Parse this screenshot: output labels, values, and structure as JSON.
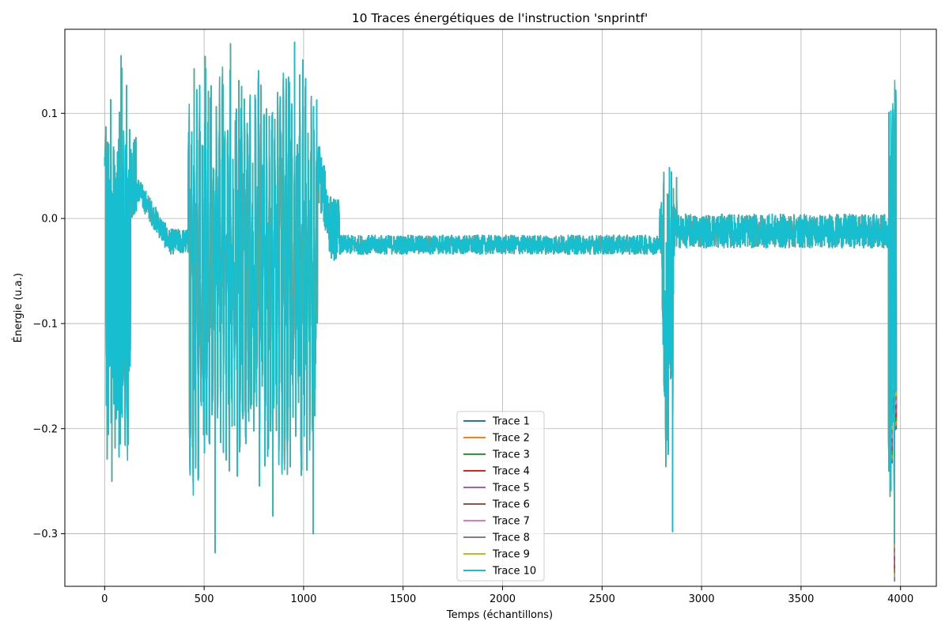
{
  "chart_data": {
    "type": "line",
    "title": "10 Traces énergétiques de l'instruction 'snprintf'",
    "xlabel": "Temps (échantillons)",
    "ylabel": "Énergie (u.a.)",
    "xlim": [
      -200,
      4180
    ],
    "ylim": [
      -0.35,
      0.18
    ],
    "xticks": [
      0,
      500,
      1000,
      1500,
      2000,
      2500,
      3000,
      3500,
      4000
    ],
    "xtick_labels": [
      "0",
      "500",
      "1000",
      "1500",
      "2000",
      "2500",
      "3000",
      "3500",
      "4000"
    ],
    "yticks": [
      -0.3,
      -0.2,
      -0.1,
      0.0,
      0.1
    ],
    "ytick_labels": [
      "−0.3",
      "−0.2",
      "−0.1",
      "0.0",
      "0.1"
    ],
    "grid": true,
    "legend_position": "lower-center",
    "sample_count": 3980,
    "note_traces_overlap": true,
    "series": [
      {
        "name": "Trace 1",
        "color": "#1f77b4"
      },
      {
        "name": "Trace 2",
        "color": "#ff7f0e"
      },
      {
        "name": "Trace 3",
        "color": "#2ca02c"
      },
      {
        "name": "Trace 4",
        "color": "#d62728"
      },
      {
        "name": "Trace 5",
        "color": "#9467bd"
      },
      {
        "name": "Trace 6",
        "color": "#8c564b"
      },
      {
        "name": "Trace 7",
        "color": "#e377c2"
      },
      {
        "name": "Trace 8",
        "color": "#7f7f7f"
      },
      {
        "name": "Trace 9",
        "color": "#bcbd22"
      },
      {
        "name": "Trace 10",
        "color": "#17becf"
      }
    ],
    "segments": [
      {
        "x": [
          0,
          5
        ],
        "mean": 0.055,
        "amp": 0.012,
        "kind": "noise"
      },
      {
        "x": [
          5,
          130
        ],
        "mean": -0.05,
        "amp": 0.16,
        "kind": "burst",
        "period": 5
      },
      {
        "x": [
          130,
          160
        ],
        "mean": 0.04,
        "amp": 0.04,
        "kind": "noise"
      },
      {
        "x": [
          160,
          420
        ],
        "mean": -0.022,
        "amp": 0.012,
        "kind": "decay",
        "from": 0.03
      },
      {
        "x": [
          420,
          1070
        ],
        "mean": -0.05,
        "amp": 0.17,
        "kind": "burst",
        "period": 14
      },
      {
        "x": [
          1070,
          1180
        ],
        "mean": -0.01,
        "amp": 0.03,
        "kind": "decay",
        "from": 0.05
      },
      {
        "x": [
          1180,
          2790
        ],
        "mean": -0.025,
        "amp": 0.009,
        "kind": "noise"
      },
      {
        "x": [
          2790,
          2870
        ],
        "mean": -0.08,
        "amp": 0.15,
        "kind": "dip"
      },
      {
        "x": [
          2870,
          3940
        ],
        "mean": -0.012,
        "amp": 0.016,
        "kind": "noise"
      },
      {
        "x": [
          3940,
          3980
        ],
        "mean": -0.08,
        "amp": 0.2,
        "kind": "tail"
      }
    ],
    "extremes": [
      {
        "x": 83,
        "y": 0.155
      },
      {
        "x": 36,
        "y": -0.25
      },
      {
        "x": 115,
        "y": -0.23
      },
      {
        "x": 555,
        "y": -0.318
      },
      {
        "x": 595,
        "y": 0.127
      },
      {
        "x": 445,
        "y": -0.263
      },
      {
        "x": 845,
        "y": -0.283
      },
      {
        "x": 870,
        "y": 0.12
      },
      {
        "x": 1048,
        "y": -0.3
      },
      {
        "x": 2820,
        "y": -0.236
      },
      {
        "x": 2855,
        "y": -0.298
      },
      {
        "x": 2875,
        "y": 0.039
      },
      {
        "x": 3960,
        "y": 0.077
      },
      {
        "x": 3970,
        "y": -0.327
      },
      {
        "x": 3977,
        "y": 0.104
      }
    ]
  }
}
